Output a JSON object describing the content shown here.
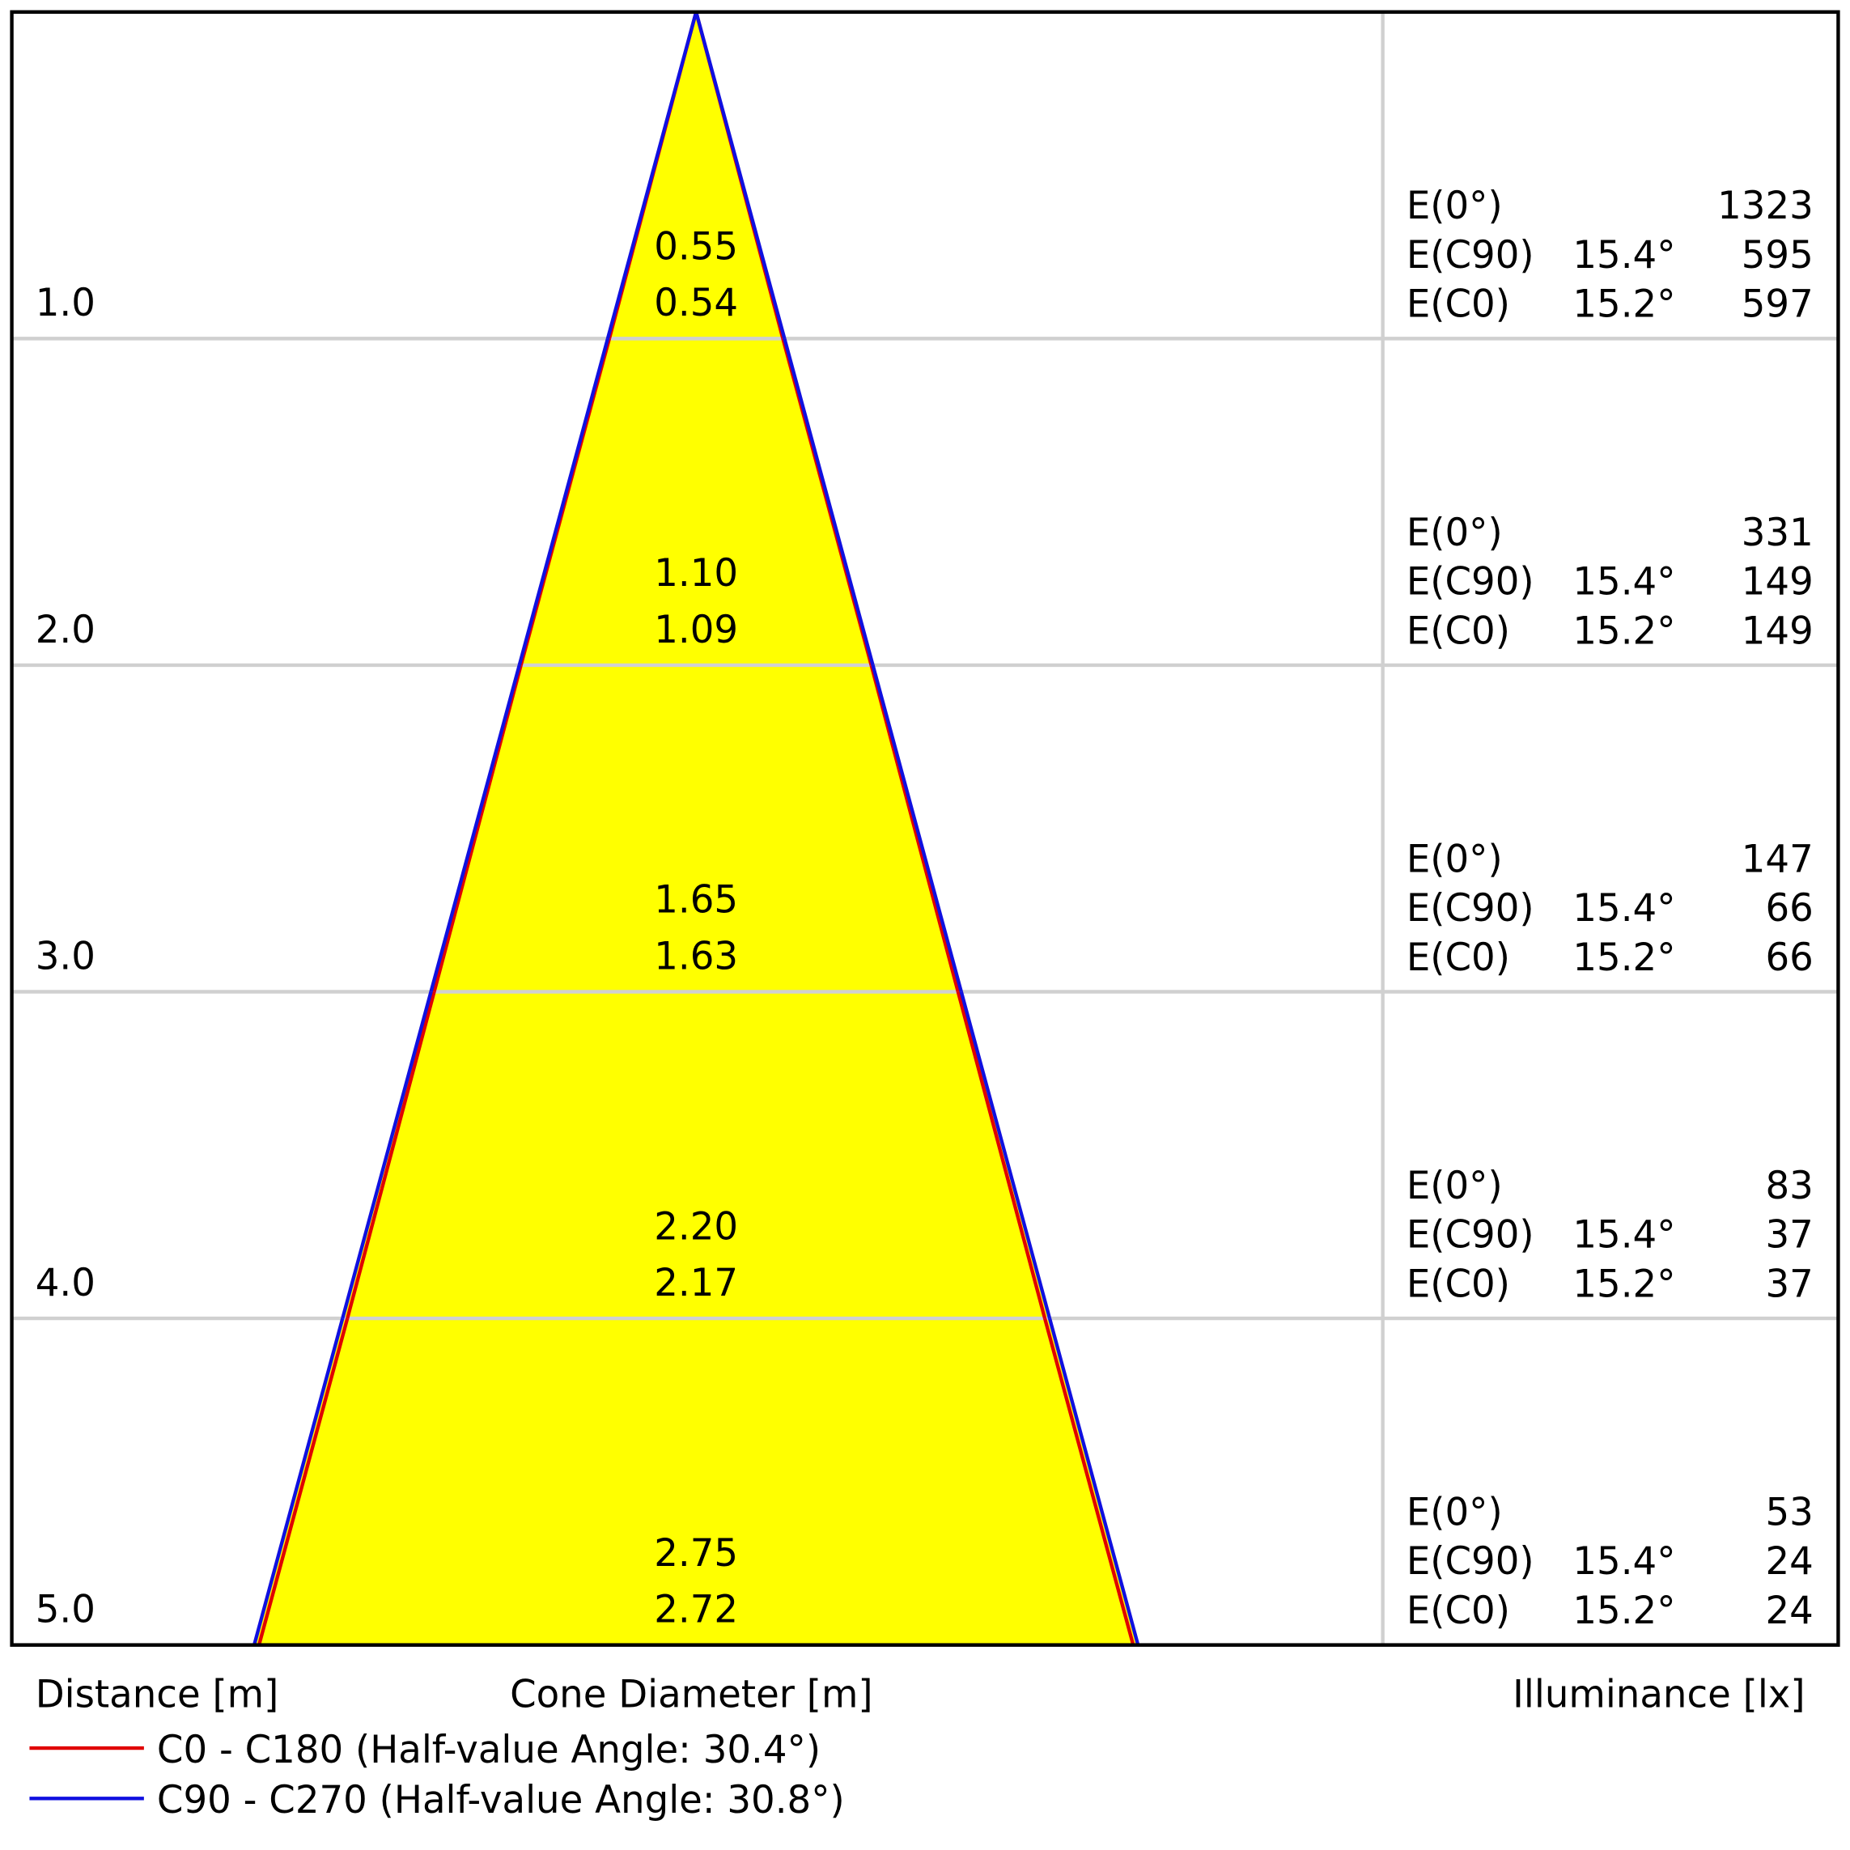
{
  "chart_data": {
    "type": "cone",
    "ylabel": "Distance [m]",
    "xlabel": "Cone Diameter [m]",
    "illuminance_label": "Illuminance [lx]",
    "fill": "#ffff00",
    "distances": [
      {
        "value": 1,
        "label": "1.0"
      },
      {
        "value": 2,
        "label": "2.0"
      },
      {
        "value": 3,
        "label": "3.0"
      },
      {
        "value": 4,
        "label": "4.0"
      },
      {
        "value": 5,
        "label": "5.0"
      }
    ],
    "series": [
      {
        "name": "C0 - C180 (Half-value Angle: 30.4°)",
        "color": "#e00000",
        "values": [
          0.54,
          1.09,
          1.63,
          2.17,
          2.72
        ],
        "value_labels": [
          "0.54",
          "1.09",
          "1.63",
          "2.17",
          "2.72"
        ]
      },
      {
        "name": "C90 - C270 (Half-value Angle: 30.8°)",
        "color": "#1010e0",
        "values": [
          0.55,
          1.1,
          1.65,
          2.2,
          2.75
        ],
        "value_labels": [
          "0.55",
          "1.10",
          "1.65",
          "2.20",
          "2.75"
        ]
      }
    ],
    "illuminance": [
      {
        "name": "E(0°)",
        "values": [
          1323,
          331,
          147,
          83,
          53
        ]
      },
      {
        "name": "E(C90)",
        "angle": "15.4°",
        "values": [
          595,
          149,
          66,
          37,
          24
        ]
      },
      {
        "name": "E(C0)",
        "angle": "15.2°",
        "values": [
          597,
          149,
          66,
          37,
          24
        ]
      }
    ]
  }
}
